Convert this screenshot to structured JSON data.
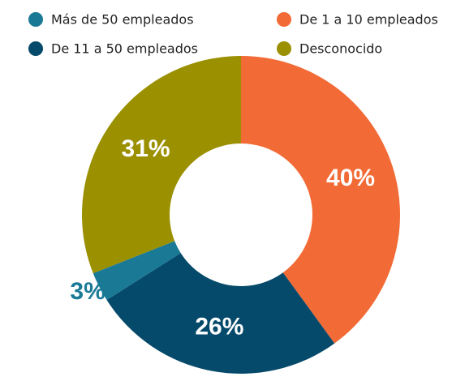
{
  "chart_data": {
    "type": "donut",
    "categories": [
      "De 1 a 10 empleados",
      "De 11 a 50 empleados",
      "Más de 50 empleados",
      "Desconocido"
    ],
    "values": [
      40,
      26,
      3,
      31
    ],
    "value_labels": [
      "40%",
      "26%",
      "3%",
      "31%"
    ],
    "colors": [
      "#f26a35",
      "#054a6b",
      "#1a7a96",
      "#9a9000"
    ],
    "legend": "top"
  }
}
